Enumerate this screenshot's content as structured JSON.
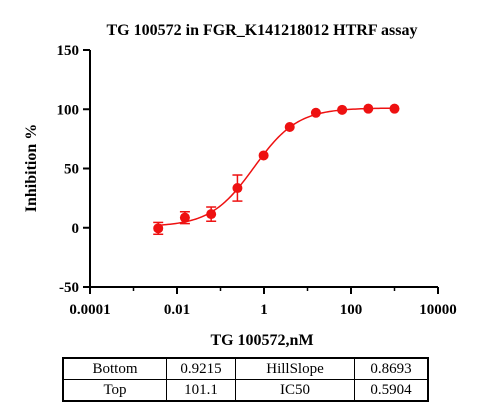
{
  "chart_data": {
    "type": "scatter",
    "title": "TG 100572 in FGR_K141218012 HTRF assay",
    "xlabel": "TG 100572,nM",
    "ylabel": "Inhibition %",
    "x_scale": "log",
    "xlim": [
      0.0001,
      10000
    ],
    "ylim": [
      -50,
      150
    ],
    "x_ticks": [
      0.0001,
      0.01,
      1,
      100,
      10000
    ],
    "x_tick_labels": [
      "0.0001",
      "0.01",
      "1",
      "100",
      "10000"
    ],
    "y_ticks": [
      -50,
      0,
      50,
      100,
      150
    ],
    "y_tick_labels": [
      "-50",
      "0",
      "50",
      "100",
      "150"
    ],
    "grid": false,
    "color": "#ee1111",
    "series": [
      {
        "points": [
          {
            "x": 0.0037,
            "y": -0.5,
            "err": 5
          },
          {
            "x": 0.0152,
            "y": 8.5,
            "err": 5
          },
          {
            "x": 0.061,
            "y": 11.5,
            "err": 6
          },
          {
            "x": 0.245,
            "y": 33.5,
            "err": 11
          },
          {
            "x": 0.98,
            "y": 61,
            "err": 0
          },
          {
            "x": 3.9,
            "y": 85,
            "err": 0
          },
          {
            "x": 15.6,
            "y": 97,
            "err": 0
          },
          {
            "x": 62.5,
            "y": 99.5,
            "err": 0
          },
          {
            "x": 250,
            "y": 100.5,
            "err": 0
          },
          {
            "x": 1000,
            "y": 100.5,
            "err": 0
          }
        ]
      }
    ],
    "fit": {
      "model": "4PL",
      "bottom": 0.9215,
      "top": 101.1,
      "hillslope": 0.8693,
      "ic50": 0.5904
    }
  },
  "table": {
    "rows": [
      [
        "Bottom",
        "0.9215",
        "HillSlope",
        "0.8693"
      ],
      [
        "Top",
        "101.1",
        "IC50",
        "0.5904"
      ]
    ]
  }
}
